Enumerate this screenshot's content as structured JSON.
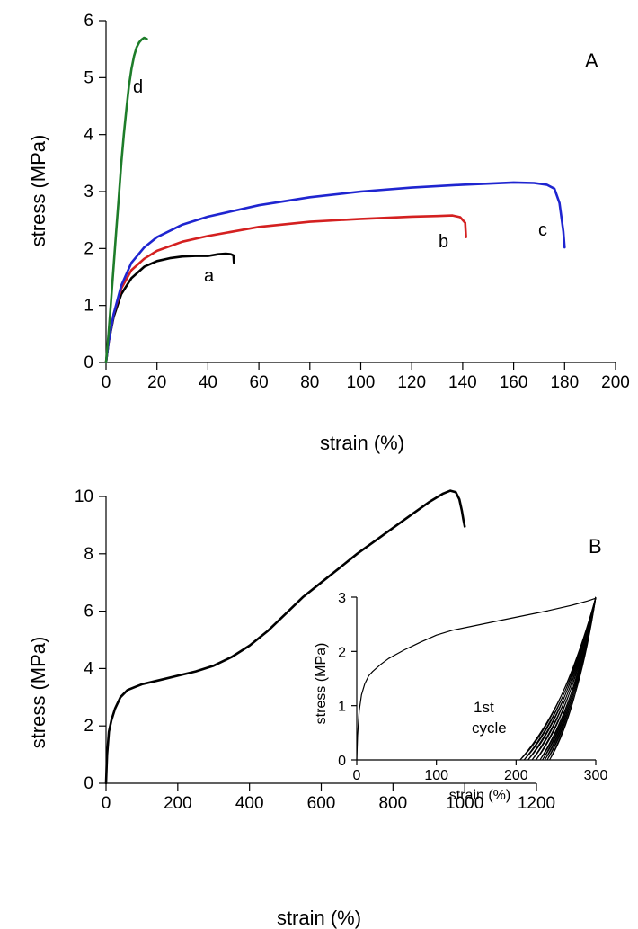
{
  "chart_data": [
    {
      "type": "line",
      "panel_label": "A",
      "xlabel": "strain (%)",
      "ylabel": "stress (MPa)",
      "xlim": [
        0,
        200
      ],
      "ylim": [
        0,
        6
      ],
      "xticks": [
        0,
        20,
        40,
        60,
        80,
        100,
        120,
        140,
        160,
        180,
        200
      ],
      "yticks": [
        0,
        1,
        2,
        3,
        4,
        5,
        6
      ],
      "grid": false,
      "legend": "none",
      "series": [
        {
          "name": "a",
          "color": "#000000",
          "x": [
            0,
            1,
            3,
            6,
            10,
            15,
            20,
            25,
            30,
            35,
            40,
            44,
            47,
            49,
            50,
            50.2
          ],
          "y": [
            0,
            0.35,
            0.8,
            1.2,
            1.48,
            1.68,
            1.78,
            1.83,
            1.86,
            1.87,
            1.87,
            1.9,
            1.91,
            1.9,
            1.88,
            1.75
          ]
        },
        {
          "name": "b",
          "color": "#d42020",
          "x": [
            0,
            1,
            3,
            6,
            10,
            15,
            20,
            30,
            40,
            60,
            80,
            100,
            120,
            130,
            136,
            139,
            141,
            141.3
          ],
          "y": [
            0,
            0.35,
            0.85,
            1.3,
            1.62,
            1.82,
            1.96,
            2.12,
            2.22,
            2.38,
            2.47,
            2.52,
            2.56,
            2.57,
            2.58,
            2.55,
            2.45,
            2.2
          ]
        },
        {
          "name": "c",
          "color": "#1f25d0",
          "x": [
            0,
            1,
            3,
            6,
            10,
            15,
            20,
            30,
            40,
            60,
            80,
            100,
            120,
            140,
            160,
            168,
            173,
            176,
            178,
            179.5,
            180
          ],
          "y": [
            0,
            0.35,
            0.85,
            1.35,
            1.75,
            2.02,
            2.2,
            2.42,
            2.56,
            2.76,
            2.9,
            3.0,
            3.07,
            3.12,
            3.16,
            3.15,
            3.12,
            3.05,
            2.8,
            2.3,
            2.02
          ]
        },
        {
          "name": "d",
          "color": "#1e7d2a",
          "x": [
            0,
            1,
            2,
            3,
            4,
            5,
            6,
            7,
            8,
            9,
            10,
            11,
            12,
            13,
            14,
            15,
            16
          ],
          "y": [
            0,
            0.5,
            1.1,
            1.7,
            2.3,
            2.9,
            3.5,
            4.0,
            4.45,
            4.85,
            5.15,
            5.38,
            5.53,
            5.62,
            5.67,
            5.7,
            5.68
          ]
        }
      ]
    },
    {
      "type": "line",
      "panel_label": "B",
      "xlabel": "strain (%)",
      "ylabel": "stress (MPa)",
      "xlim": [
        0,
        1200
      ],
      "ylim": [
        0,
        10
      ],
      "xticks": [
        0,
        200,
        400,
        600,
        800,
        1000,
        1200
      ],
      "yticks": [
        0,
        2,
        4,
        6,
        8,
        10
      ],
      "grid": false,
      "legend": "none",
      "series": [
        {
          "color": "#000000",
          "x": [
            0,
            3,
            8,
            15,
            25,
            40,
            60,
            80,
            100,
            150,
            200,
            250,
            300,
            350,
            400,
            450,
            500,
            550,
            600,
            650,
            700,
            750,
            800,
            850,
            900,
            940,
            960,
            975,
            985,
            992,
            996,
            1000
          ],
          "y": [
            0,
            1.0,
            1.8,
            2.2,
            2.6,
            3.0,
            3.25,
            3.35,
            3.45,
            3.6,
            3.75,
            3.9,
            4.1,
            4.4,
            4.8,
            5.3,
            5.9,
            6.5,
            7.0,
            7.5,
            8.0,
            8.45,
            8.9,
            9.35,
            9.8,
            10.1,
            10.2,
            10.15,
            9.9,
            9.5,
            9.2,
            8.95
          ]
        }
      ]
    },
    {
      "type": "line",
      "panel": "inset",
      "xlabel": "strain (%)",
      "ylabel": "stress (MPa)",
      "xlim": [
        0,
        300
      ],
      "ylim": [
        0,
        3
      ],
      "xticks": [
        0,
        100,
        200,
        300
      ],
      "yticks": [
        0,
        1,
        2,
        3
      ],
      "grid": false,
      "legend": "none",
      "annotation": "1st cycle",
      "series": [
        {
          "color": "#000000",
          "x": [
            0,
            1,
            3,
            6,
            10,
            15,
            20,
            30,
            40,
            50,
            60,
            70,
            80,
            100,
            120,
            150,
            180,
            210,
            240,
            270,
            290,
            300
          ],
          "y": [
            0,
            0.45,
            0.9,
            1.2,
            1.4,
            1.55,
            1.63,
            1.76,
            1.87,
            1.95,
            2.03,
            2.1,
            2.17,
            2.3,
            2.39,
            2.48,
            2.57,
            2.66,
            2.75,
            2.85,
            2.93,
            2.98
          ]
        }
      ],
      "cycles": {
        "unload_start": [
          300,
          3.0
        ],
        "loop_x_start": [
          205,
          210,
          215,
          220,
          225,
          230,
          233,
          236,
          239,
          242
        ]
      }
    }
  ]
}
